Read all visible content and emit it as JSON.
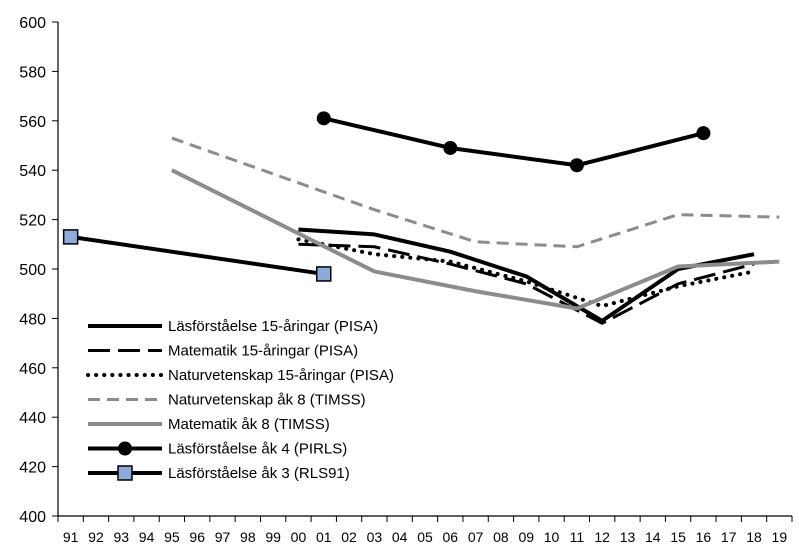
{
  "chart_data": {
    "type": "line",
    "title": "",
    "xlabel": "",
    "ylabel": "",
    "x_ticks": [
      "91",
      "92",
      "93",
      "94",
      "95",
      "96",
      "97",
      "98",
      "99",
      "00",
      "01",
      "02",
      "03",
      "04",
      "05",
      "06",
      "07",
      "08",
      "09",
      "10",
      "11",
      "12",
      "13",
      "14",
      "15",
      "16",
      "17",
      "18",
      "19"
    ],
    "ylim": [
      400,
      600
    ],
    "y_ticks": [
      "400",
      "420",
      "440",
      "460",
      "480",
      "500",
      "520",
      "540",
      "560",
      "580",
      "600"
    ],
    "grid": false,
    "legend": "bottom-left",
    "series": [
      {
        "name": "Läsförståelse 15-åringar (PISA)",
        "style": "solid",
        "color": "#000000",
        "width": 4,
        "marker": "none",
        "points": [
          [
            "00",
            516
          ],
          [
            "03",
            514
          ],
          [
            "06",
            507
          ],
          [
            "09",
            497
          ],
          [
            "12",
            479
          ],
          [
            "15",
            500
          ],
          [
            "18",
            506
          ]
        ]
      },
      {
        "name": "Matematik 15-åringar (PISA)",
        "style": "longdash",
        "color": "#000000",
        "width": 3,
        "marker": "none",
        "points": [
          [
            "00",
            510
          ],
          [
            "03",
            509
          ],
          [
            "06",
            502
          ],
          [
            "09",
            494
          ],
          [
            "12",
            478
          ],
          [
            "15",
            494
          ],
          [
            "18",
            502
          ]
        ]
      },
      {
        "name": "Naturvetenskap 15-åringar (PISA)",
        "style": "dotted",
        "color": "#000000",
        "width": 4,
        "marker": "none",
        "points": [
          [
            "00",
            512
          ],
          [
            "03",
            506
          ],
          [
            "06",
            503
          ],
          [
            "09",
            495
          ],
          [
            "12",
            485
          ],
          [
            "15",
            493
          ],
          [
            "18",
            499
          ]
        ]
      },
      {
        "name": "Naturvetenskap åk 8 (TIMSS)",
        "style": "dashed",
        "color": "#8c8c8c",
        "width": 3,
        "marker": "none",
        "points": [
          [
            "95",
            553
          ],
          [
            "03",
            524
          ],
          [
            "07",
            511
          ],
          [
            "11",
            509
          ],
          [
            "15",
            522
          ],
          [
            "19",
            521
          ]
        ]
      },
      {
        "name": "Matematik åk 8 (TIMSS)",
        "style": "solid",
        "color": "#8c8c8c",
        "width": 4,
        "marker": "none",
        "points": [
          [
            "95",
            540
          ],
          [
            "03",
            499
          ],
          [
            "07",
            491
          ],
          [
            "11",
            484
          ],
          [
            "15",
            501
          ],
          [
            "19",
            503
          ]
        ]
      },
      {
        "name": "Läsförståelse åk 4 (PIRLS)",
        "style": "solid",
        "color": "#000000",
        "width": 4,
        "marker": "circle",
        "points": [
          [
            "01",
            561
          ],
          [
            "06",
            549
          ],
          [
            "11",
            542
          ],
          [
            "16",
            555
          ]
        ]
      },
      {
        "name": "Läsförståelse åk 3 (RLS91)",
        "style": "solid",
        "color": "#000000",
        "width": 4,
        "marker": "square",
        "marker_color": "#8eaadb",
        "points": [
          [
            "91",
            513
          ],
          [
            "01",
            498
          ]
        ]
      }
    ]
  }
}
